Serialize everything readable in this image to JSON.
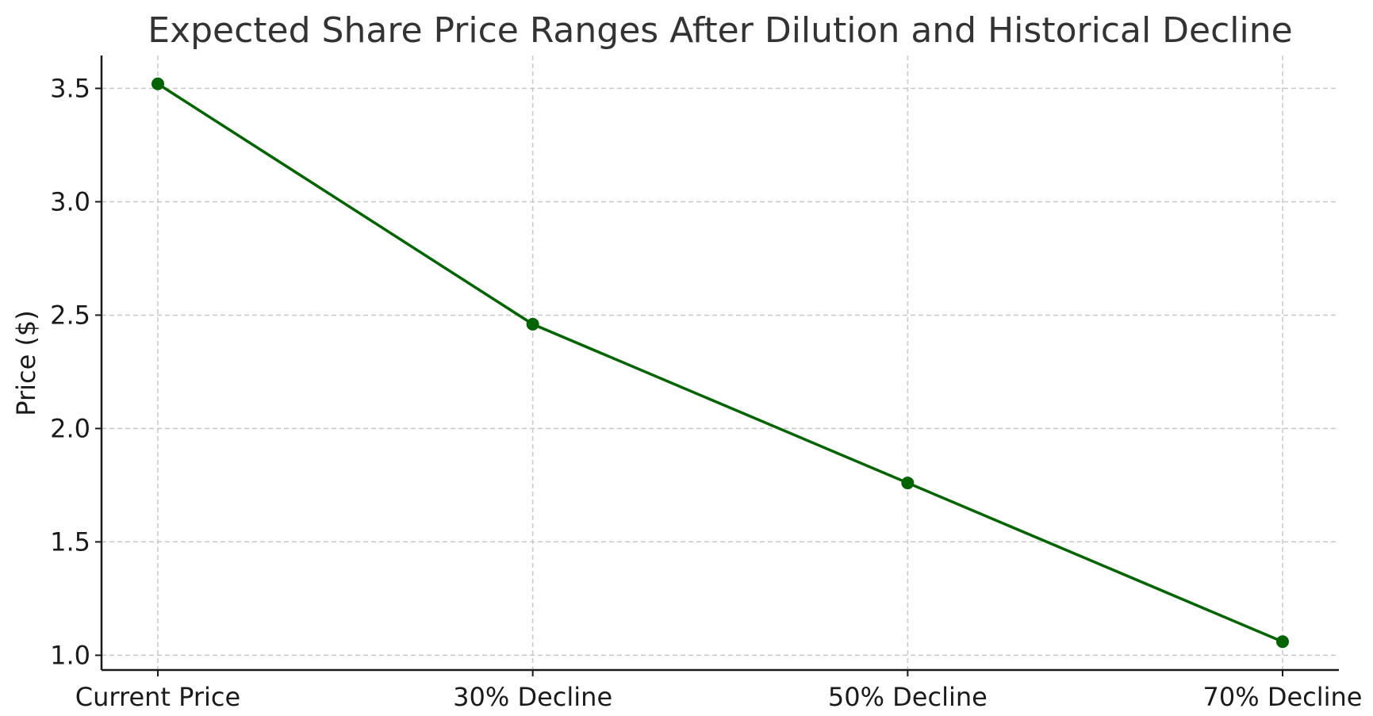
{
  "chart_data": {
    "type": "line",
    "title": "Expected Share Price Ranges After Dilution and Historical Decline",
    "xlabel": "",
    "ylabel": "Price ($)",
    "categories": [
      "Current Price",
      "30% Decline",
      "50% Decline",
      "70% Decline"
    ],
    "series": [
      {
        "values": [
          3.52,
          2.46,
          1.76,
          1.06
        ],
        "color": "#006400"
      }
    ],
    "ylim": [
      0.935,
      3.645
    ],
    "yticks": [
      1.0,
      1.5,
      2.0,
      2.5,
      3.0,
      3.5
    ],
    "ytick_labels": [
      "1.0",
      "1.5",
      "2.0",
      "2.5",
      "3.0",
      "3.5"
    ],
    "grid": true,
    "legend": "none"
  }
}
